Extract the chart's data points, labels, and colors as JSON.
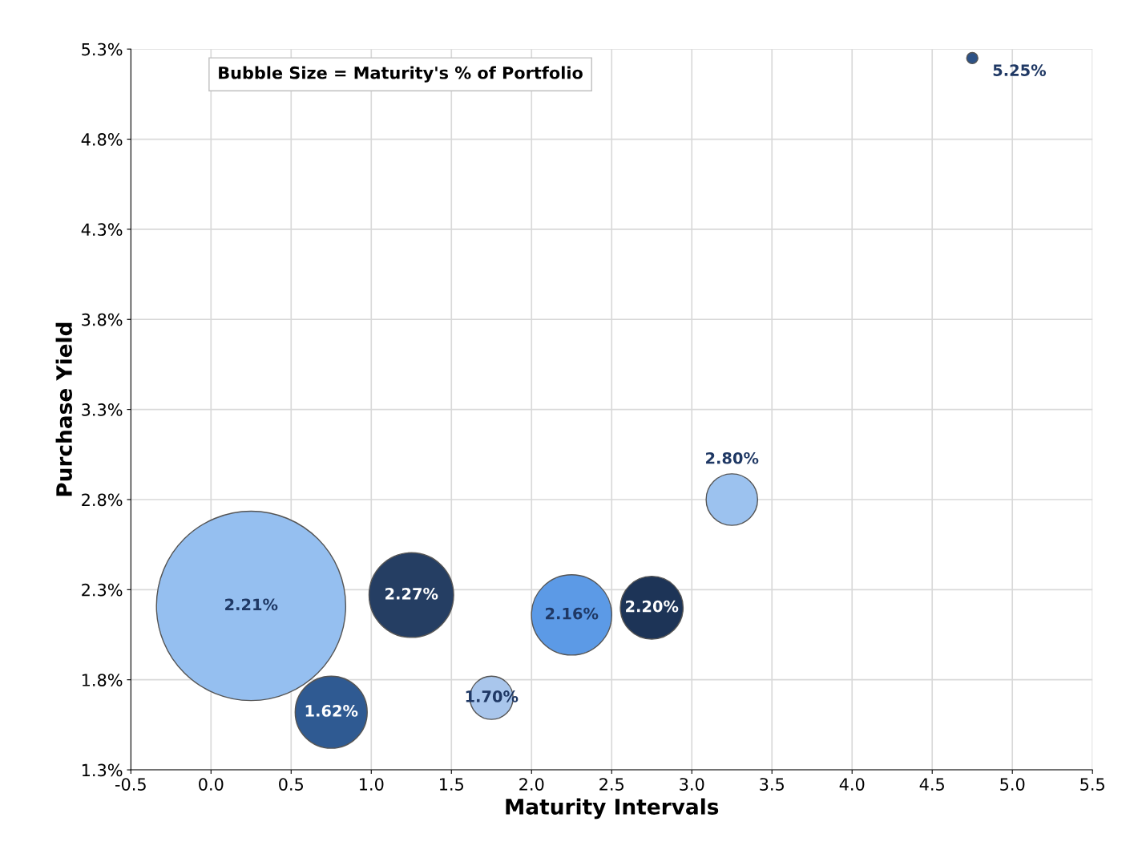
{
  "chart_data": {
    "type": "bubble",
    "xlabel": "Maturity Intervals",
    "ylabel": "Purchase Yield",
    "annotations": [
      "Bubble Size = Maturity's % of Portfolio"
    ],
    "x": [
      0.25,
      0.75,
      1.25,
      1.75,
      2.25,
      2.75,
      3.25,
      4.75
    ],
    "values": [
      2.21,
      1.62,
      2.27,
      1.7,
      2.16,
      2.2,
      2.8,
      5.25
    ],
    "value_labels": [
      "2.21%",
      "1.62%",
      "2.27%",
      "1.70%",
      "2.16%",
      "2.20%",
      "2.80%",
      "5.25%"
    ],
    "sizes": [
      1,
      0.145,
      0.2,
      0.052,
      0.18,
      0.11,
      0.074,
      0.0035
    ],
    "colors": [
      "#95bff0",
      "#2f5a92",
      "#253e63",
      "#a9c6ec",
      "#5c9ae6",
      "#1d3457",
      "#9cc2ef",
      "#2d5286"
    ],
    "xlim": [
      -0.5,
      5.5
    ],
    "xticks": [
      -0.5,
      {
        "value": 0,
        "label": "0.0"
      },
      0.5,
      {
        "value": 1,
        "label": "1.0"
      },
      1.5,
      {
        "value": 2,
        "label": "2.0"
      },
      2.5,
      {
        "value": 3,
        "label": "3.0"
      },
      3.5,
      {
        "value": 4,
        "label": "4.0"
      },
      4.5,
      {
        "value": 5,
        "label": "5.0"
      },
      5.5
    ],
    "ylim": [
      1.3,
      5.3
    ],
    "yticks": [
      {
        "value": 1.3,
        "label": "1.3%"
      },
      {
        "value": 1.8,
        "label": "1.8%"
      },
      {
        "value": 2.3,
        "label": "2.3%"
      },
      {
        "value": 2.8,
        "label": "2.8%"
      },
      {
        "value": 3.3,
        "label": "3.3%"
      },
      {
        "value": 3.8,
        "label": "3.8%"
      },
      {
        "value": 4.3,
        "label": "4.3%"
      },
      {
        "value": 4.8,
        "label": "4.8%"
      },
      {
        "value": 5.3,
        "label": "5.3%"
      }
    ],
    "grid": true,
    "marker": "circle"
  }
}
